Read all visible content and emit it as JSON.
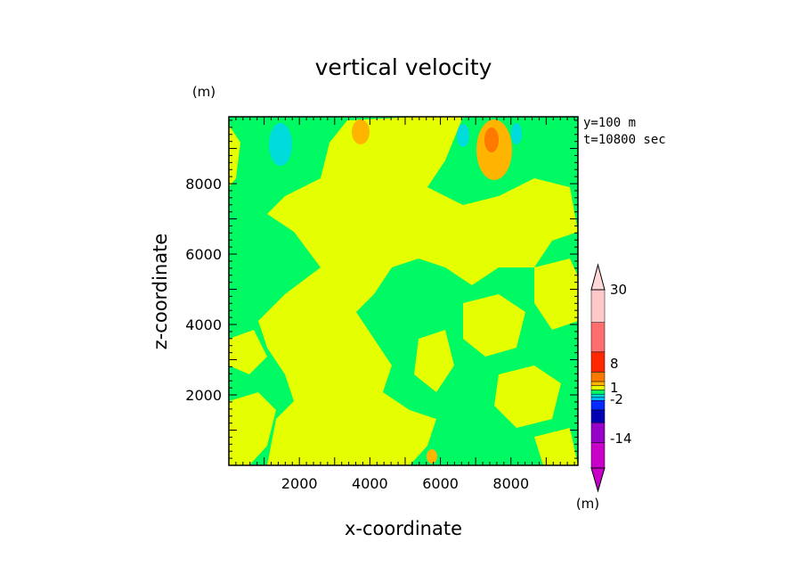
{
  "chart_data": {
    "type": "heatmap",
    "title": "vertical velocity",
    "xlabel": "x-coordinate",
    "ylabel": "z-coordinate",
    "y_unit": "(m)",
    "colorbar_unit": "(m)",
    "annotations": [
      "y=100 m",
      "t=10800 sec"
    ],
    "xlim": [
      0,
      9900
    ],
    "ylim": [
      0,
      9900
    ],
    "x_ticks": [
      2000,
      4000,
      6000,
      8000
    ],
    "y_ticks": [
      2000,
      4000,
      6000,
      8000
    ],
    "colorbar": {
      "labels": [
        {
          "text": "30",
          "value": 30
        },
        {
          "text": "8",
          "value": 8
        },
        {
          "text": "1",
          "value": 1
        },
        {
          "text": "-2",
          "value": -2
        },
        {
          "text": "-14",
          "value": -14
        }
      ],
      "levels": [
        {
          "color": "#c800c8"
        },
        {
          "color": "#9600c8"
        },
        {
          "color": "#0000b4"
        },
        {
          "color": "#0028ff"
        },
        {
          "color": "#00b4ff"
        },
        {
          "color": "#00dcdc"
        },
        {
          "color": "#00fa64"
        },
        {
          "color": "#e6ff00"
        },
        {
          "color": "#ffb400"
        },
        {
          "color": "#ff7800"
        },
        {
          "color": "#ff2800"
        },
        {
          "color": "#ff6e6e"
        },
        {
          "color": "#ffc8c8"
        }
      ],
      "extend_low_color": "#c800c8",
      "extend_high_color": "#ffd8d8"
    },
    "field": {
      "background_color": "#00fa64",
      "regions": [
        {
          "level": "positive-small",
          "color": "#e6ff00"
        },
        {
          "level": "positive-mid",
          "color": "#ffb400"
        },
        {
          "level": "positive-high",
          "color": "#ff7800"
        },
        {
          "level": "negative-mid",
          "color": "#00dcdc"
        }
      ]
    }
  }
}
